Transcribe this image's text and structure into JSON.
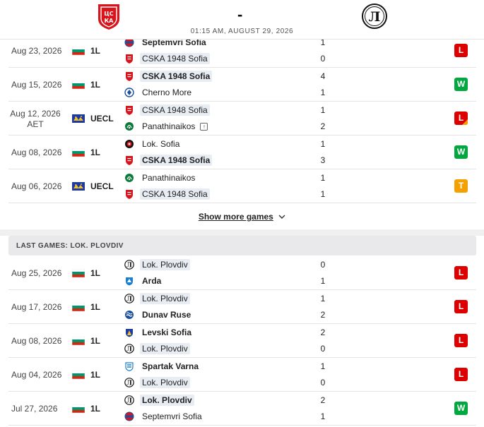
{
  "header": {
    "home_team": "CSKA 1948 Sofia",
    "away_team": "Lok. Plovdiv",
    "score_dash": "-",
    "datetime": "01:15 AM, AUGUST 29, 2026"
  },
  "last_games_home": [
    {
      "date": "Aug 23, 2026",
      "date_extra": "",
      "flag": "bulgaria-flag",
      "league": "1L",
      "team1": "Septemvri Sofia",
      "team1_icon": "septemvri-logo-icon",
      "team1_hl": false,
      "team1_bold": true,
      "team2": "CSKA 1948 Sofia",
      "team2_icon": "cska-1948-logo-icon",
      "team2_hl": true,
      "team2_bold": false,
      "score1": "1",
      "score2": "0",
      "result": "L"
    },
    {
      "date": "Aug 15, 2026",
      "date_extra": "",
      "flag": "bulgaria-flag",
      "league": "1L",
      "team1": "CSKA 1948 Sofia",
      "team1_icon": "cska-1948-logo-icon",
      "team1_hl": true,
      "team1_bold": true,
      "team2": "Cherno More",
      "team2_icon": "cherno-more-logo-icon",
      "team2_hl": false,
      "team2_bold": false,
      "score1": "4",
      "score2": "1",
      "result": "W"
    },
    {
      "date": "Aug 12, 2026",
      "date_extra": "AET",
      "flag": "europe-flag",
      "league": "UECL",
      "team1": "CSKA 1948 Sofia",
      "team1_icon": "cska-1948-logo-icon",
      "team1_hl": true,
      "team1_bold": false,
      "team2": "Panathinaikos",
      "team2_icon": "panathinaikos-logo-icon",
      "team2_hl": false,
      "team2_bold": false,
      "team2_advanced": true,
      "score1": "1",
      "score2": "2",
      "result": "L"
    },
    {
      "date": "Aug 08, 2026",
      "date_extra": "",
      "flag": "bulgaria-flag",
      "league": "1L",
      "team1": "Lok. Sofia",
      "team1_icon": "lok-sofia-logo-icon",
      "team1_hl": false,
      "team1_bold": false,
      "team2": "CSKA 1948 Sofia",
      "team2_icon": "cska-1948-logo-icon",
      "team2_hl": true,
      "team2_bold": true,
      "score1": "1",
      "score2": "3",
      "result": "W"
    },
    {
      "date": "Aug 06, 2026",
      "date_extra": "",
      "flag": "europe-flag",
      "league": "UECL",
      "team1": "Panathinaikos",
      "team1_icon": "panathinaikos-logo-icon",
      "team1_hl": false,
      "team1_bold": false,
      "team2": "CSKA 1948 Sofia",
      "team2_icon": "cska-1948-logo-icon",
      "team2_hl": true,
      "team2_bold": false,
      "score1": "1",
      "score2": "1",
      "result": "T"
    }
  ],
  "show_more": "Show more games",
  "section_title": "LAST GAMES: LOK. PLOVDIV",
  "last_games_away": [
    {
      "date": "Aug 25, 2026",
      "date_extra": "",
      "flag": "bulgaria-flag",
      "league": "1L",
      "team1": "Lok. Plovdiv",
      "team1_icon": "lok-plovdiv-logo-icon",
      "team1_hl": true,
      "team1_bold": false,
      "team2": "Arda",
      "team2_icon": "arda-logo-icon",
      "team2_hl": false,
      "team2_bold": true,
      "score1": "0",
      "score2": "1",
      "result": "L"
    },
    {
      "date": "Aug 17, 2026",
      "date_extra": "",
      "flag": "bulgaria-flag",
      "league": "1L",
      "team1": "Lok. Plovdiv",
      "team1_icon": "lok-plovdiv-logo-icon",
      "team1_hl": true,
      "team1_bold": false,
      "team2": "Dunav Ruse",
      "team2_icon": "dunav-ruse-logo-icon",
      "team2_hl": false,
      "team2_bold": true,
      "score1": "1",
      "score2": "2",
      "result": "L"
    },
    {
      "date": "Aug 08, 2026",
      "date_extra": "",
      "flag": "bulgaria-flag",
      "league": "1L",
      "team1": "Levski Sofia",
      "team1_icon": "levski-logo-icon",
      "team1_hl": false,
      "team1_bold": true,
      "team2": "Lok. Plovdiv",
      "team2_icon": "lok-plovdiv-logo-icon",
      "team2_hl": true,
      "team2_bold": false,
      "score1": "2",
      "score2": "0",
      "result": "L"
    },
    {
      "date": "Aug 04, 2026",
      "date_extra": "",
      "flag": "bulgaria-flag",
      "league": "1L",
      "team1": "Spartak Varna",
      "team1_icon": "spartak-varna-logo-icon",
      "team1_hl": false,
      "team1_bold": true,
      "team2": "Lok. Plovdiv",
      "team2_icon": "lok-plovdiv-logo-icon",
      "team2_hl": true,
      "team2_bold": false,
      "score1": "1",
      "score2": "0",
      "result": "L"
    },
    {
      "date": "Jul 27, 2026",
      "date_extra": "",
      "flag": "bulgaria-flag",
      "league": "1L",
      "team1": "Lok. Plovdiv",
      "team1_icon": "lok-plovdiv-logo-icon",
      "team1_hl": true,
      "team1_bold": true,
      "team2": "Septemvri Sofia",
      "team2_icon": "septemvri-logo-icon",
      "team2_hl": false,
      "team2_bold": false,
      "score1": "2",
      "score2": "1",
      "result": "W"
    }
  ]
}
